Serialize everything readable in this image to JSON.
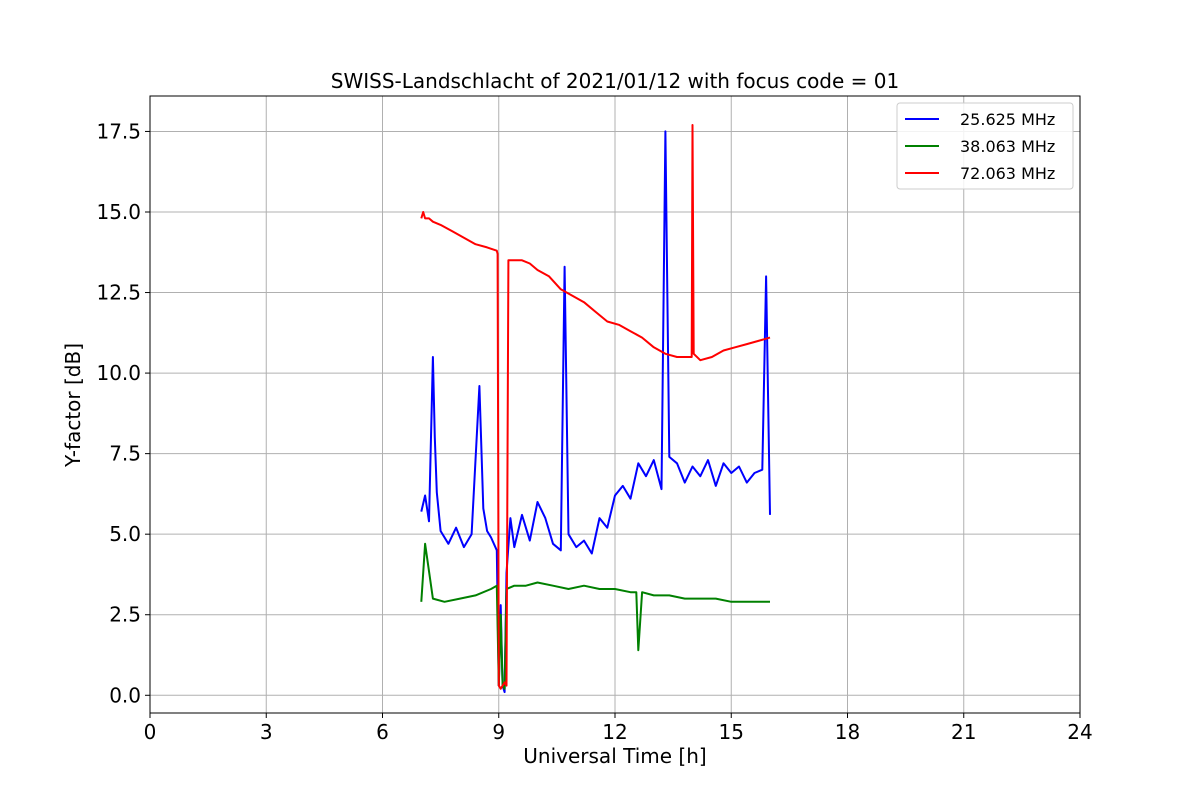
{
  "chart_data": {
    "type": "line",
    "title": "SWISS-Landschlacht of 2021/01/12 with focus code = 01",
    "xlabel": "Universal Time [h]",
    "ylabel": "Y-factor [dB]",
    "xlim": [
      0,
      24
    ],
    "ylim": [
      -0.55,
      18.6
    ],
    "xticks": [
      0,
      3,
      6,
      9,
      12,
      15,
      18,
      21,
      24
    ],
    "xtick_labels": [
      "0",
      "3",
      "6",
      "9",
      "12",
      "15",
      "18",
      "21",
      "24"
    ],
    "yticks": [
      0,
      2.5,
      5,
      7.5,
      10,
      12.5,
      15,
      17.5
    ],
    "ytick_labels": [
      "0.0",
      "2.5",
      "5.0",
      "7.5",
      "10.0",
      "12.5",
      "15.0",
      "17.5"
    ],
    "grid": true,
    "legend_position": "top-right",
    "series": [
      {
        "name": "25.625 MHz",
        "color": "#0000ff",
        "x": [
          7.0,
          7.1,
          7.2,
          7.3,
          7.35,
          7.4,
          7.5,
          7.7,
          7.9,
          8.1,
          8.3,
          8.5,
          8.6,
          8.7,
          8.8,
          8.95,
          9.0,
          9.05,
          9.1,
          9.15,
          9.2,
          9.3,
          9.4,
          9.6,
          9.8,
          10.0,
          10.2,
          10.4,
          10.6,
          10.7,
          10.8,
          11.0,
          11.2,
          11.4,
          11.6,
          11.8,
          12.0,
          12.2,
          12.4,
          12.6,
          12.8,
          13.0,
          13.2,
          13.3,
          13.4,
          13.6,
          13.8,
          14.0,
          14.2,
          14.4,
          14.6,
          14.8,
          15.0,
          15.2,
          15.4,
          15.6,
          15.8,
          15.9,
          16.0
        ],
        "y": [
          5.7,
          6.2,
          5.4,
          10.5,
          8.0,
          6.3,
          5.1,
          4.7,
          5.2,
          4.6,
          5.0,
          9.6,
          5.8,
          5.1,
          4.9,
          4.5,
          0.3,
          2.8,
          0.3,
          0.1,
          3.8,
          5.5,
          4.6,
          5.6,
          4.8,
          6.0,
          5.5,
          4.7,
          4.5,
          13.3,
          5.0,
          4.6,
          4.8,
          4.4,
          5.5,
          5.2,
          6.2,
          6.5,
          6.1,
          7.2,
          6.8,
          7.3,
          6.4,
          17.5,
          7.4,
          7.2,
          6.6,
          7.1,
          6.8,
          7.3,
          6.5,
          7.2,
          6.9,
          7.1,
          6.6,
          6.9,
          7.0,
          13.0,
          5.6
        ]
      },
      {
        "name": "38.063 MHz",
        "color": "#008000",
        "x": [
          7.0,
          7.1,
          7.3,
          7.6,
          8.0,
          8.4,
          8.8,
          8.95,
          9.0,
          9.05,
          9.1,
          9.15,
          9.2,
          9.4,
          9.7,
          10.0,
          10.4,
          10.8,
          11.2,
          11.6,
          12.0,
          12.4,
          12.55,
          12.6,
          12.7,
          13.0,
          13.4,
          13.8,
          14.2,
          14.6,
          15.0,
          15.4,
          15.8,
          16.0
        ],
        "y": [
          2.9,
          4.7,
          3.0,
          2.9,
          3.0,
          3.1,
          3.3,
          3.4,
          0.3,
          2.5,
          0.3,
          0.2,
          3.3,
          3.4,
          3.4,
          3.5,
          3.4,
          3.3,
          3.4,
          3.3,
          3.3,
          3.2,
          3.2,
          1.4,
          3.2,
          3.1,
          3.1,
          3.0,
          3.0,
          3.0,
          2.9,
          2.9,
          2.9,
          2.9
        ]
      },
      {
        "name": "72.063 MHz",
        "color": "#ff0000",
        "x": [
          7.0,
          7.05,
          7.1,
          7.2,
          7.3,
          7.5,
          7.8,
          8.1,
          8.4,
          8.7,
          8.95,
          8.97,
          9.0,
          9.05,
          9.1,
          9.15,
          9.2,
          9.25,
          9.4,
          9.6,
          9.8,
          10.0,
          10.3,
          10.6,
          10.9,
          11.2,
          11.5,
          11.8,
          12.1,
          12.4,
          12.7,
          13.0,
          13.3,
          13.6,
          13.9,
          13.98,
          14.0,
          14.03,
          14.2,
          14.5,
          14.8,
          15.1,
          15.4,
          15.7,
          16.0
        ],
        "y": [
          14.8,
          15.0,
          14.8,
          14.8,
          14.7,
          14.6,
          14.4,
          14.2,
          14.0,
          13.9,
          13.8,
          13.7,
          0.3,
          0.2,
          0.3,
          0.4,
          0.3,
          13.5,
          13.5,
          13.5,
          13.4,
          13.2,
          13.0,
          12.6,
          12.4,
          12.2,
          11.9,
          11.6,
          11.5,
          11.3,
          11.1,
          10.8,
          10.6,
          10.5,
          10.5,
          10.5,
          17.7,
          10.6,
          10.4,
          10.5,
          10.7,
          10.8,
          10.9,
          11.0,
          11.1
        ]
      }
    ]
  }
}
